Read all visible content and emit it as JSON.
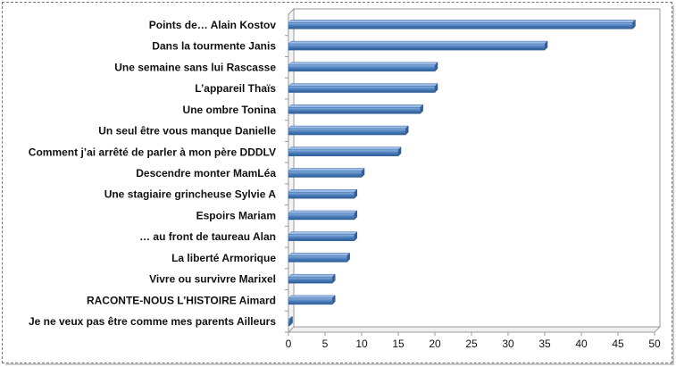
{
  "chart_data": {
    "type": "bar",
    "orientation": "horizontal",
    "title": "",
    "xlabel": "",
    "ylabel": "",
    "categories": [
      "Points de… Alain Kostov",
      "Dans la tourmente Janis",
      "Une semaine sans lui Rascasse",
      "L’appareil Thaïs",
      "Une ombre Tonina",
      "Un seul être vous manque  Danielle",
      "Comment j’ai arrêté de parler à mon père DDDLV",
      "Descendre monter  MamLéa",
      "Une stagiaire grincheuse  Sylvie A",
      "Espoirs Mariam",
      "… au front de taureau Alan",
      "La liberté  Armorique",
      "Vivre ou survivre  Marixel",
      "RACONTE-NOUS L’HISTOIRE  Aimard",
      "Je ne veux pas être comme mes parents Ailleurs"
    ],
    "values": [
      47,
      35,
      20,
      20,
      18,
      16,
      15,
      10,
      9,
      9,
      9,
      8,
      6,
      6,
      0
    ],
    "xlim": [
      0,
      50
    ],
    "xticks": [
      "0",
      "5",
      "10",
      "15",
      "20",
      "25",
      "30",
      "35",
      "40",
      "45",
      "50"
    ],
    "grid": false,
    "legend": "none",
    "bar_color": "#4f81bd"
  }
}
